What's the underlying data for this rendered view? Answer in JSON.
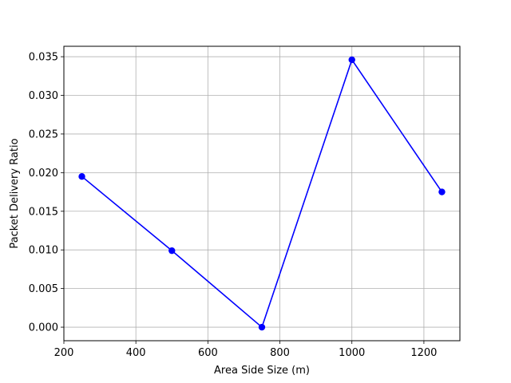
{
  "chart_data": {
    "type": "line",
    "title": "",
    "xlabel": "Area Side Size (m)",
    "ylabel": "Packet Delivery Ratio",
    "xlim": [
      200,
      1300
    ],
    "ylim": [
      -0.00175,
      0.03635
    ],
    "x_ticks": [
      200,
      400,
      600,
      800,
      1000,
      1200
    ],
    "y_ticks": [
      0.0,
      0.005,
      0.01,
      0.015,
      0.02,
      0.025,
      0.03,
      0.035
    ],
    "y_tick_labels": [
      "0.000",
      "0.005",
      "0.010",
      "0.015",
      "0.020",
      "0.025",
      "0.030",
      "0.035"
    ],
    "grid": true,
    "series": [
      {
        "color": "#0000ff",
        "marker": "circle",
        "x": [
          250,
          500,
          750,
          1000,
          1250
        ],
        "y": [
          0.0195,
          0.0099,
          0.0,
          0.0346,
          0.0175
        ]
      }
    ]
  }
}
